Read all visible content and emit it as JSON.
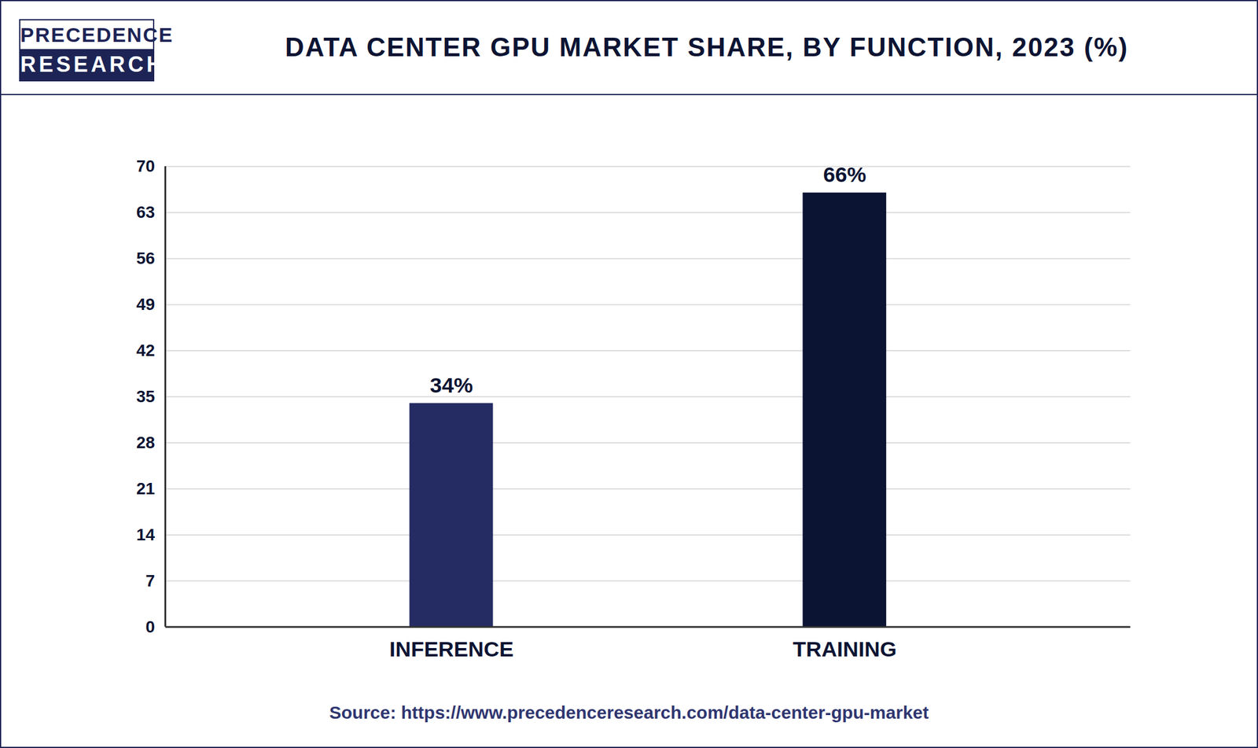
{
  "chart_data": {
    "type": "bar",
    "title": "DATA CENTER GPU MARKET SHARE, BY FUNCTION, 2023 (%)",
    "logo": [
      "PRECEDENCE",
      "RESEARCH"
    ],
    "source": "Source: https://www.precedenceresearch.com/data-center-gpu-market",
    "categories": [
      "INFERENCE",
      "TRAINING"
    ],
    "values": [
      34,
      66
    ],
    "value_labels": [
      "34%",
      "66%"
    ],
    "data_labels": true,
    "colors": [
      "#252c63",
      "#0b1433"
    ],
    "ylim": [
      0,
      70
    ],
    "yticks": [
      0,
      7,
      14,
      21,
      28,
      35,
      42,
      49,
      56,
      63,
      70
    ],
    "grid": true
  }
}
